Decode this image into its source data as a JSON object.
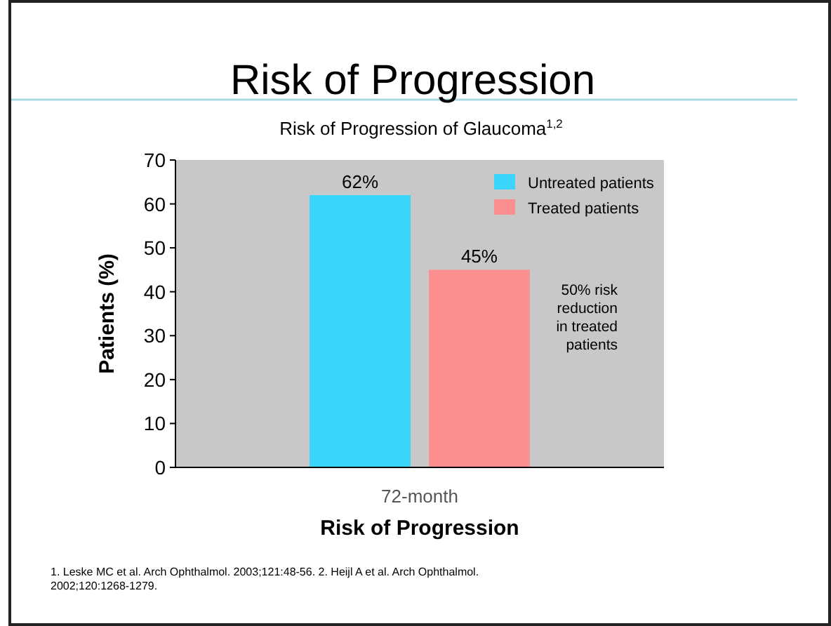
{
  "chart_data": {
    "type": "bar",
    "title": "Risk of Progression",
    "subtitle": "Risk of Progression of Glaucoma$^{1,2}$",
    "xlabel": "Risk of Progression",
    "ylabel": "Patients (%)",
    "categories": [
      "72-month"
    ],
    "series": [
      {
        "name": "Untreated patients",
        "color": "#3bd4fb",
        "values": [
          62
        ],
        "value_labels": [
          "62%"
        ]
      },
      {
        "name": "Treated patients",
        "color": "#fb8f8f",
        "values": [
          45
        ],
        "value_labels": [
          "45%"
        ]
      }
    ],
    "ylim": [
      0,
      70
    ],
    "yticks": [
      0,
      10,
      20,
      30,
      40,
      50,
      60,
      70
    ],
    "grid": false,
    "legend": "top right",
    "annotations": [
      "50% risk reduction in treated patients",
      "1. Leske MC et al. Arch Ophthalmol. 2003;121:48-56. 2. Heijl A et al. Arch Ophthalmol. 2002;120:1268-1279."
    ]
  }
}
